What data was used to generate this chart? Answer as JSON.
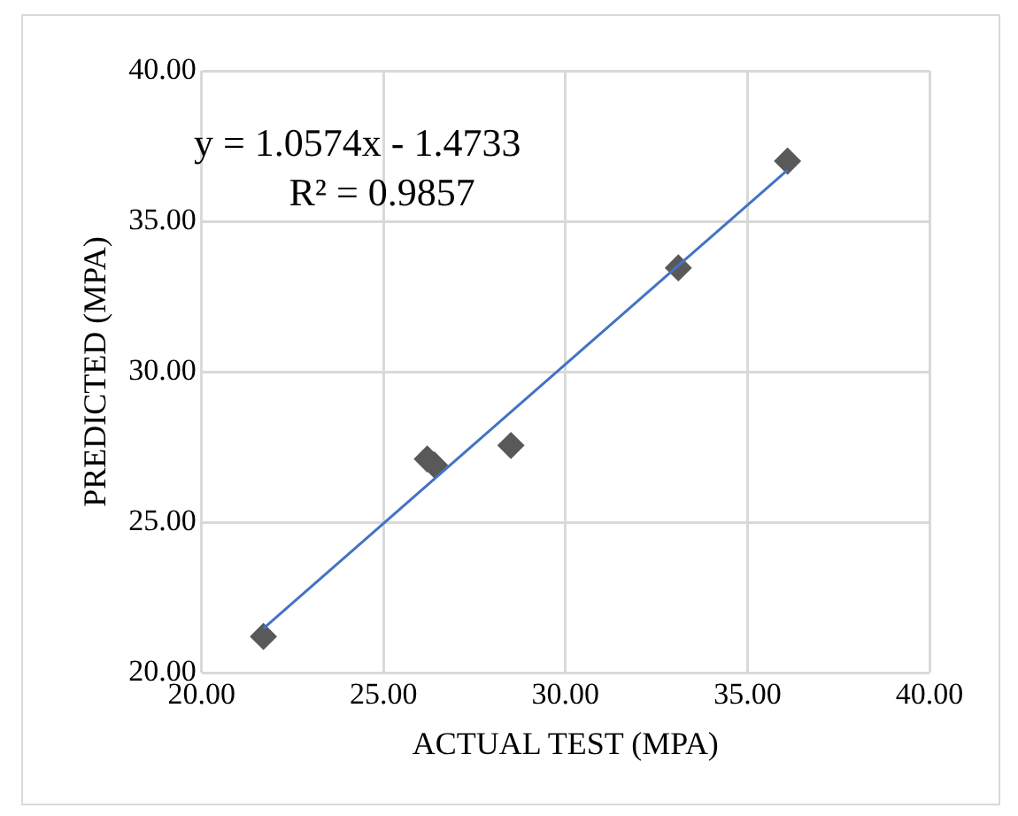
{
  "chart_data": {
    "type": "scatter",
    "xlabel": "ACTUAL TEST (MPA)",
    "ylabel": "PREDICTED (MPA)",
    "x": [
      21.7,
      26.2,
      26.4,
      28.5,
      33.1,
      36.1
    ],
    "series": [
      {
        "color": "#595959",
        "marker": "diamond",
        "values": [
          21.2,
          27.1,
          26.9,
          27.55,
          33.45,
          37.0
        ]
      },
      {
        "type": "line",
        "color": "#4472c4",
        "marker": "none",
        "x": [
          21.7,
          36.1
        ],
        "values": [
          21.47,
          36.7
        ]
      }
    ],
    "xlim": [
      20,
      40
    ],
    "xticks": [
      {
        "value": 20,
        "label": "20.00"
      },
      {
        "value": 25,
        "label": "25.00"
      },
      {
        "value": 30,
        "label": "30.00"
      },
      {
        "value": 35,
        "label": "35.00"
      },
      {
        "value": 40,
        "label": "40.00"
      }
    ],
    "ylim": [
      20,
      40
    ],
    "yticks": [
      {
        "value": 20,
        "label": "20.00"
      },
      {
        "value": 25,
        "label": "25.00"
      },
      {
        "value": 30,
        "label": "30.00"
      },
      {
        "value": 35,
        "label": "35.00"
      },
      {
        "value": 40,
        "label": "40.00"
      }
    ],
    "annotations": [
      "y = 1.0574x - 1.4733",
      "R² = 0.9857"
    ],
    "grid": true,
    "legend": false
  }
}
